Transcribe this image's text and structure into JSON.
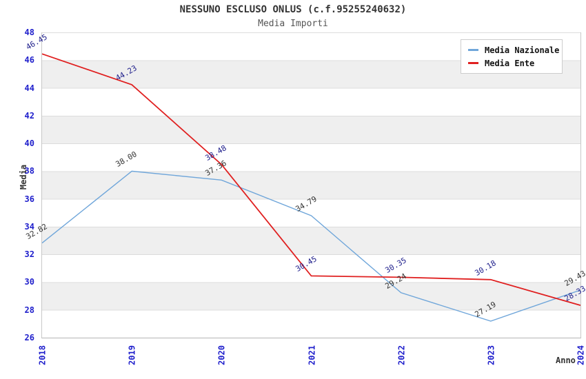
{
  "header": {
    "title": "NESSUNO ESCLUSO ONLUS (c.f.95255240632)",
    "subtitle": "Media Importi"
  },
  "axes": {
    "y_label": "Media",
    "x_label": "Anno",
    "y_ticks": [
      "48",
      "46",
      "44",
      "42",
      "40",
      "38",
      "36",
      "34",
      "32",
      "30",
      "28",
      "26"
    ],
    "x_ticks": [
      "2018",
      "2019",
      "2020",
      "2021",
      "2022",
      "2023",
      "2024"
    ],
    "tick_color": "#2020cc"
  },
  "legend": {
    "items": [
      {
        "label": "Media Nazionale",
        "color": "#6fa6da"
      },
      {
        "label": "Media Ente",
        "color": "#e02020"
      }
    ]
  },
  "chart_data": {
    "type": "line",
    "title": "NESSUNO ESCLUSO ONLUS (c.f.95255240632)",
    "subtitle": "Media Importi",
    "xlabel": "Anno",
    "ylabel": "Media",
    "x": [
      2018,
      2019,
      2020,
      2021,
      2022,
      2023,
      2024
    ],
    "ylim": [
      26,
      48
    ],
    "ytick_step": 2,
    "grid": true,
    "band_fill": "#efefef",
    "legend_position": "top-right",
    "series": [
      {
        "name": "Media Nazionale",
        "color": "#6fa6da",
        "stroke_width": 1.4,
        "label_color": "#333333",
        "values": [
          32.82,
          38.0,
          37.36,
          34.79,
          29.24,
          27.19,
          29.43
        ],
        "labels": [
          "32.82",
          "38.00",
          "37.36",
          "34.79",
          "29.24",
          "27.19",
          "29.43"
        ]
      },
      {
        "name": "Media Ente",
        "color": "#e02020",
        "stroke_width": 1.8,
        "label_color": "#20208c",
        "values": [
          46.45,
          44.23,
          38.48,
          30.45,
          30.35,
          30.18,
          28.33
        ],
        "labels": [
          "46.45",
          "44.23",
          "38.48",
          "30.45",
          "30.35",
          "30.18",
          "28.33"
        ]
      }
    ]
  }
}
